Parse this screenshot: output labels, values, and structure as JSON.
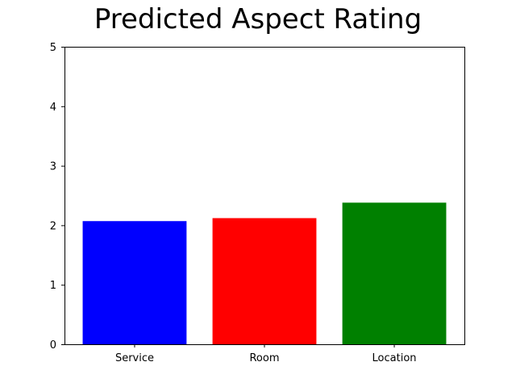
{
  "chart_data": {
    "type": "bar",
    "title": "Predicted Aspect Rating",
    "categories": [
      "Service",
      "Room",
      "Location"
    ],
    "values": [
      2.07,
      2.12,
      2.38
    ],
    "colors": [
      "#0000ff",
      "#ff0000",
      "#008000"
    ],
    "ylim": [
      0,
      5
    ],
    "yticks": [
      "0",
      "1",
      "2",
      "3",
      "4",
      "5"
    ],
    "xlabel": "",
    "ylabel": "",
    "grid": false
  }
}
